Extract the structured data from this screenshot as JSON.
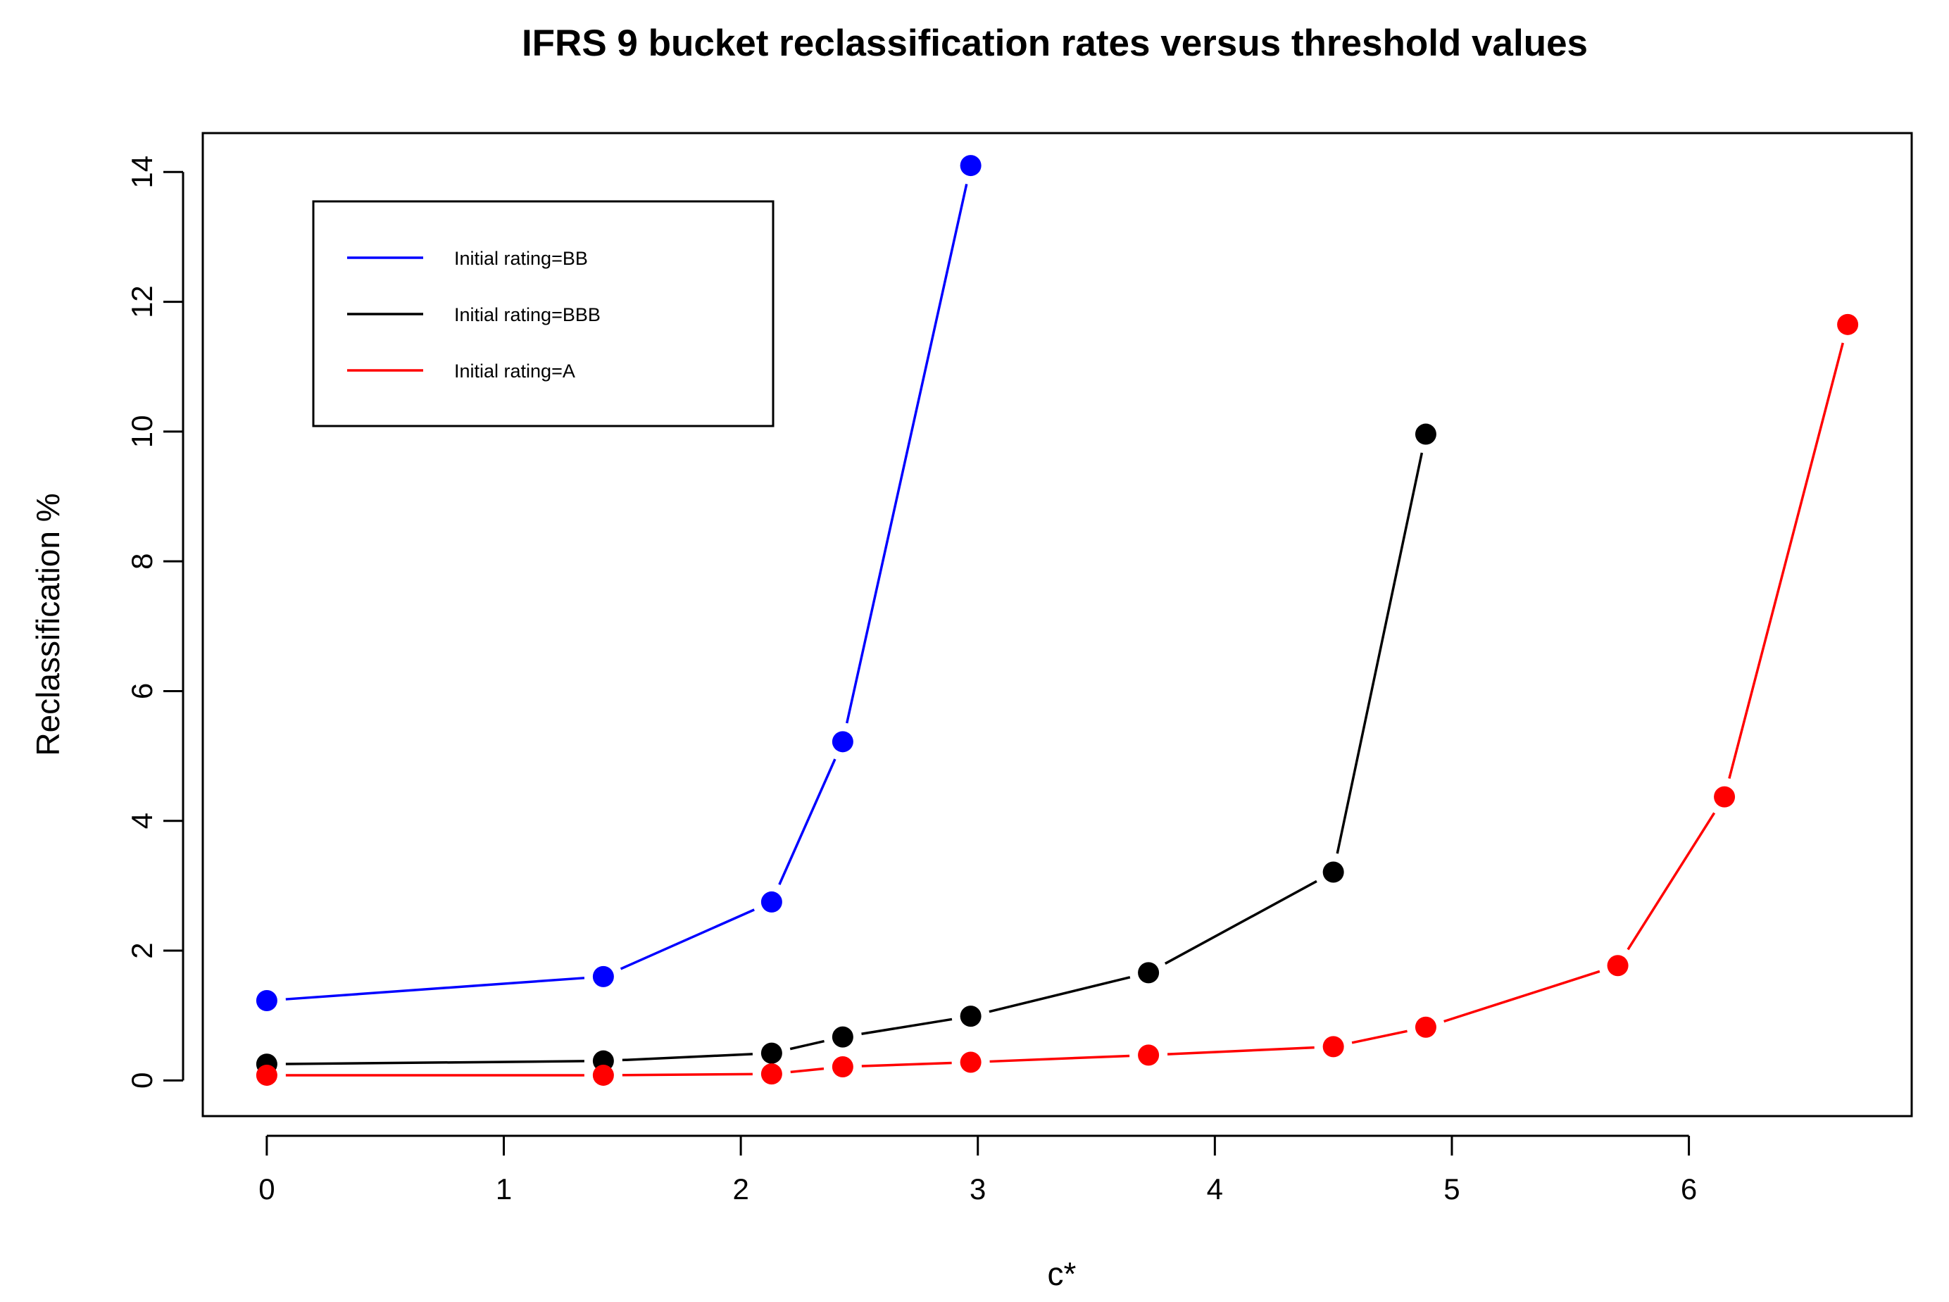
{
  "chart_data": {
    "type": "line",
    "title": "IFRS 9 bucket reclassification rates versus threshold values",
    "xlabel": "c*",
    "ylabel": "Reclassification %",
    "xlim": [
      -0.27,
      6.94
    ],
    "ylim": [
      -0.55,
      14.6
    ],
    "x_ticks": [
      "0",
      "1",
      "2",
      "3",
      "4",
      "5",
      "6"
    ],
    "y_ticks": [
      "0",
      "2",
      "4",
      "6",
      "8",
      "10",
      "12",
      "14"
    ],
    "grid": false,
    "legend_position": "top-left",
    "series": [
      {
        "name": "Initial rating=BB",
        "color": "#0000ff",
        "x": [
          0,
          1.42,
          2.13,
          2.43,
          2.97
        ],
        "y": [
          1.23,
          1.6,
          2.75,
          5.22,
          14.1
        ]
      },
      {
        "name": "Initial rating=BBB",
        "color": "#000000",
        "x": [
          0,
          1.42,
          2.13,
          2.43,
          2.97,
          3.72,
          4.5,
          4.89
        ],
        "y": [
          0.25,
          0.3,
          0.42,
          0.67,
          0.99,
          1.66,
          3.21,
          9.96
        ]
      },
      {
        "name": "Initial rating=A",
        "color": "#ff0000",
        "x": [
          0,
          1.42,
          2.13,
          2.43,
          2.97,
          3.72,
          4.5,
          4.89,
          5.7,
          6.15,
          6.67
        ],
        "y": [
          0.08,
          0.08,
          0.1,
          0.21,
          0.28,
          0.39,
          0.52,
          0.82,
          1.77,
          4.37,
          11.65
        ]
      }
    ]
  }
}
